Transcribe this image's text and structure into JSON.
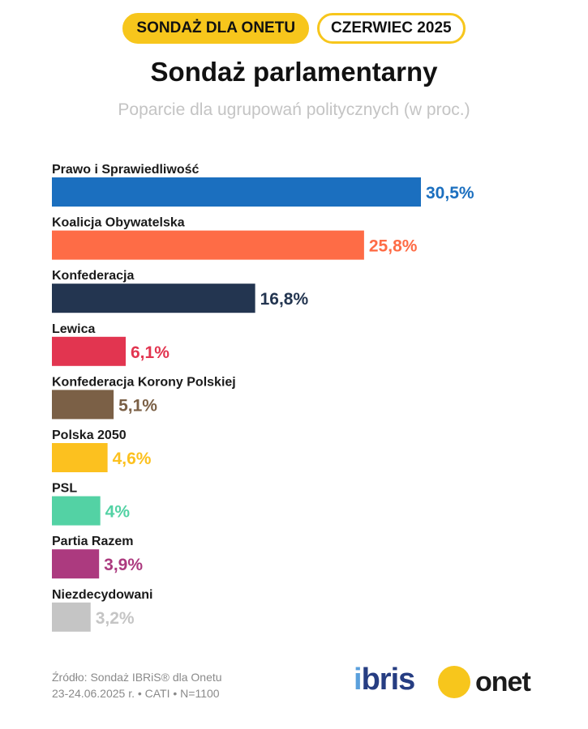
{
  "header": {
    "badge_left": "SONDAŻ DLA ONETU",
    "badge_right": "CZERWIEC 2025"
  },
  "chart_data": {
    "type": "bar",
    "orientation": "horizontal",
    "title": "Sondaż parlamentarny",
    "subtitle": "Poparcie dla ugrupowań politycznych (w proc.)",
    "unit": "%",
    "categories": [
      "Prawo i Sprawiedliwość",
      "Koalicja Obywatelska",
      "Konfederacja",
      "Lewica",
      "Konfederacja Korony Polskiej",
      "Polska 2050",
      "PSL",
      "Partia Razem",
      "Niezdecydowani"
    ],
    "values": [
      30.5,
      25.8,
      16.8,
      6.1,
      5.1,
      4.6,
      4.0,
      3.9,
      3.2
    ],
    "value_labels": [
      "30,5%",
      "25,8%",
      "16,8%",
      "6,1%",
      "5,1%",
      "4,6%",
      "4%",
      "3,9%",
      "3,2%"
    ],
    "colors": [
      "#1b6fbf",
      "#fe6c46",
      "#233550",
      "#e23550",
      "#7b6046",
      "#fcc11f",
      "#53d2a4",
      "#ac3a7f",
      "#c5c5c5"
    ],
    "xlim": [
      0,
      30.5
    ],
    "grid": false,
    "legend": "none"
  },
  "footer": {
    "source_line1": "Źródło: Sondaż IBRiS® dla Onetu",
    "source_line2": "23-24.06.2025 r. • CATI • N=1100",
    "logo_ibris_a": "i",
    "logo_ibris_b": "bris",
    "logo_onet": "onet"
  }
}
